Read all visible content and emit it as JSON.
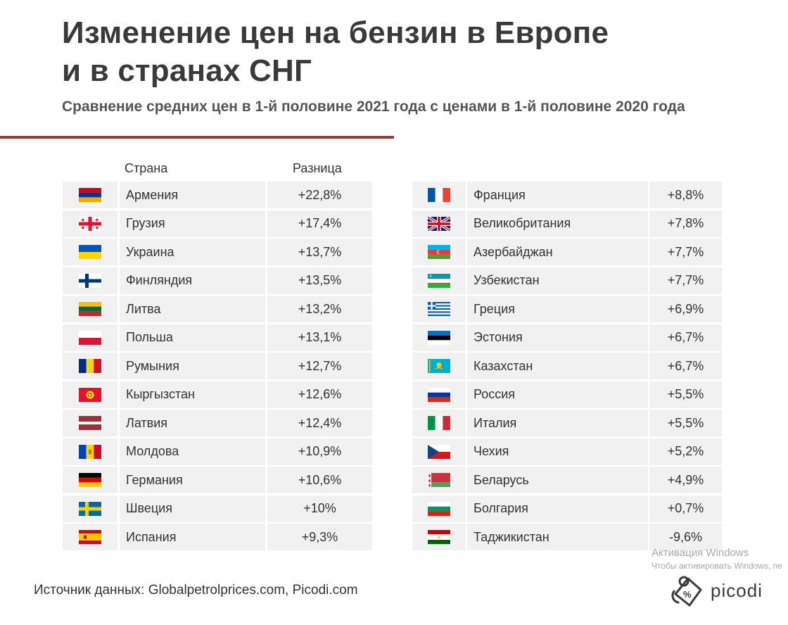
{
  "header": {
    "title_line1": "Изменение цен на бензин в Европе",
    "title_line2": "и в странах СНГ",
    "subtitle": "Сравнение средних цен в 1-й половине 2021 года с ценами в 1-й половине 2020 года"
  },
  "chart_data": {
    "type": "table",
    "columns": [
      "Страна",
      "Разница"
    ],
    "rows": [
      {
        "country": "Армения",
        "diff": "+22,8%",
        "flag": "armenia"
      },
      {
        "country": "Грузия",
        "diff": "+17,4%",
        "flag": "georgia"
      },
      {
        "country": "Украина",
        "diff": "+13,7%",
        "flag": "ukraine"
      },
      {
        "country": "Финляндия",
        "diff": "+13,5%",
        "flag": "finland"
      },
      {
        "country": "Литва",
        "diff": "+13,2%",
        "flag": "lithuania"
      },
      {
        "country": "Польша",
        "diff": "+13,1%",
        "flag": "poland"
      },
      {
        "country": "Румыния",
        "diff": "+12,7%",
        "flag": "romania"
      },
      {
        "country": "Кыргызстан",
        "diff": "+12,6%",
        "flag": "kyrgyzstan"
      },
      {
        "country": "Латвия",
        "diff": "+12,4%",
        "flag": "latvia"
      },
      {
        "country": "Молдова",
        "diff": "+10,9%",
        "flag": "moldova"
      },
      {
        "country": "Германия",
        "diff": "+10,6%",
        "flag": "germany"
      },
      {
        "country": "Швеция",
        "diff": "+10%",
        "flag": "sweden"
      },
      {
        "country": "Испания",
        "diff": "+9,3%",
        "flag": "spain"
      },
      {
        "country": "Франция",
        "diff": "+8,8%",
        "flag": "france"
      },
      {
        "country": "Великобритания",
        "diff": "+7,8%",
        "flag": "uk"
      },
      {
        "country": "Азербайджан",
        "diff": "+7,7%",
        "flag": "azerbaijan"
      },
      {
        "country": "Узбекистан",
        "diff": "+7,7%",
        "flag": "uzbekistan"
      },
      {
        "country": "Греция",
        "diff": "+6,9%",
        "flag": "greece"
      },
      {
        "country": "Эстония",
        "diff": "+6,7%",
        "flag": "estonia"
      },
      {
        "country": "Казахстан",
        "diff": "+6,7%",
        "flag": "kazakhstan"
      },
      {
        "country": "Россия",
        "diff": "+5,5%",
        "flag": "russia"
      },
      {
        "country": "Италия",
        "diff": "+5,5%",
        "flag": "italy"
      },
      {
        "country": "Чехия",
        "diff": "+5,2%",
        "flag": "czechia"
      },
      {
        "country": "Беларусь",
        "diff": "+4,9%",
        "flag": "belarus"
      },
      {
        "country": "Болгария",
        "diff": "+0,7%",
        "flag": "bulgaria"
      },
      {
        "country": "Таджикистан",
        "diff": "-9,6%",
        "flag": "tajikistan"
      }
    ]
  },
  "footer": {
    "source": "Источник данных: Globalpetrolprices.com, Picodi.com",
    "watermark_line1": "Активация Windows",
    "watermark_line2": "Чтобы активировать Windows, пе",
    "logo_text": "picodi",
    "logo_icon": "picodi-percent-tag-icon"
  },
  "colors": {
    "accent_rule": "#9e3a32",
    "row_bg": "#f1f1f1",
    "title": "#3a3a3a"
  }
}
